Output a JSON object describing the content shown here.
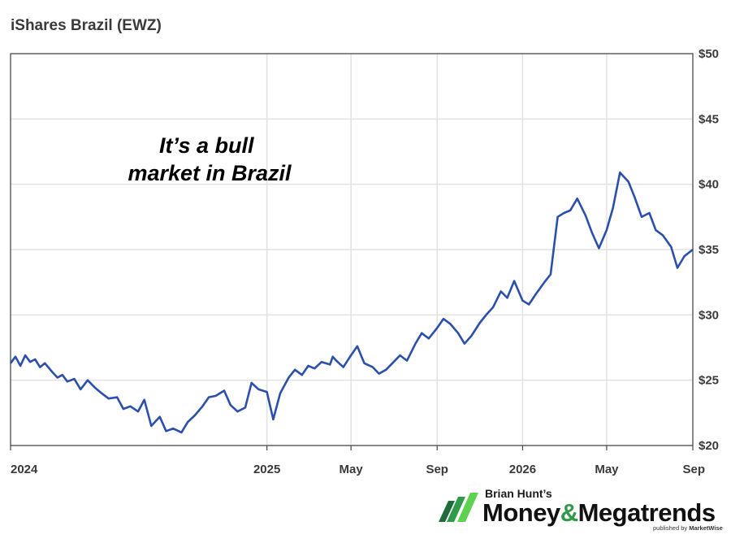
{
  "chart_data": {
    "type": "line",
    "title": "iShares Brazil (EWZ)",
    "x_tick_labels": [
      {
        "date": "2024-01-01",
        "label": "2024"
      },
      {
        "date": "2025-01-01",
        "label": "2025"
      },
      {
        "date": "2025-05-01",
        "label": "May"
      },
      {
        "date": "2025-09-01",
        "label": "Sep"
      },
      {
        "date": "2026-01-01",
        "label": "2026"
      },
      {
        "date": "2026-05-01",
        "label": "May"
      },
      {
        "date": "2026-09-01",
        "label": "Sep"
      }
    ],
    "y_ticks": [
      {
        "value": 20,
        "label": "$20"
      },
      {
        "value": 25,
        "label": "$25"
      },
      {
        "value": 30,
        "label": "$30"
      },
      {
        "value": 35,
        "label": "$35"
      },
      {
        "value": 40,
        "label": "$40"
      },
      {
        "value": 45,
        "label": "$45"
      },
      {
        "value": 50,
        "label": "$50"
      }
    ],
    "xlim": [
      "2024-01-01",
      "2026-09-01"
    ],
    "ylim": [
      20,
      50
    ],
    "y_axis_position": "right",
    "grid": true,
    "line_color": "#2b4faa",
    "annotation_lines": [
      "It’s a bull",
      "market in Brazil"
    ],
    "series": [
      {
        "x": [
          "2024-01-01",
          "2024-01-08",
          "2024-01-15",
          "2024-01-22",
          "2024-01-29",
          "2024-02-05",
          "2024-02-12",
          "2024-02-19",
          "2024-03-01",
          "2024-03-08",
          "2024-03-15",
          "2024-03-22",
          "2024-04-01",
          "2024-04-10",
          "2024-04-20",
          "2024-05-01",
          "2024-05-10",
          "2024-05-20",
          "2024-06-01",
          "2024-06-10",
          "2024-06-20",
          "2024-07-01",
          "2024-07-10",
          "2024-07-20",
          "2024-08-01",
          "2024-08-10",
          "2024-08-20",
          "2024-09-01",
          "2024-09-10",
          "2024-09-20",
          "2024-10-01",
          "2024-10-10",
          "2024-10-20",
          "2024-11-01",
          "2024-11-10",
          "2024-11-20",
          "2024-12-01",
          "2024-12-10",
          "2024-12-20",
          "2025-01-01",
          "2025-01-10",
          "2025-01-20",
          "2025-02-01",
          "2025-02-10",
          "2025-02-20",
          "2025-03-01",
          "2025-03-10",
          "2025-03-20",
          "2025-04-01",
          "2025-04-05",
          "2025-04-10",
          "2025-04-20",
          "2025-05-01",
          "2025-05-10",
          "2025-05-20",
          "2025-06-01",
          "2025-06-10",
          "2025-06-20",
          "2025-07-01",
          "2025-07-10",
          "2025-07-20",
          "2025-08-01",
          "2025-08-10",
          "2025-08-20",
          "2025-09-01",
          "2025-09-10",
          "2025-09-20",
          "2025-10-01",
          "2025-10-10",
          "2025-10-20",
          "2025-11-01",
          "2025-11-10",
          "2025-11-20",
          "2025-12-01",
          "2025-12-10",
          "2025-12-20",
          "2026-01-01",
          "2026-01-10",
          "2026-01-20",
          "2026-02-01",
          "2026-02-10",
          "2026-02-20",
          "2026-03-01",
          "2026-03-10",
          "2026-03-20",
          "2026-04-01",
          "2026-04-10",
          "2026-04-20",
          "2026-05-01",
          "2026-05-10",
          "2026-05-20",
          "2026-06-01",
          "2026-06-10",
          "2026-06-20",
          "2026-07-01",
          "2026-07-10",
          "2026-07-20",
          "2026-08-01",
          "2026-08-10",
          "2026-08-20",
          "2026-09-01"
        ],
        "y": [
          26.3,
          26.8,
          26.1,
          26.9,
          26.4,
          26.6,
          26.0,
          26.3,
          25.6,
          25.2,
          25.4,
          24.9,
          25.1,
          24.3,
          25.0,
          24.4,
          24.0,
          23.6,
          23.7,
          22.8,
          23.0,
          22.6,
          23.5,
          21.5,
          22.2,
          21.1,
          21.3,
          21.0,
          21.8,
          22.3,
          23.0,
          23.7,
          23.8,
          24.2,
          23.1,
          22.6,
          22.9,
          24.8,
          24.3,
          24.1,
          22.0,
          24.0,
          25.2,
          25.8,
          25.4,
          26.1,
          25.9,
          26.4,
          26.2,
          26.8,
          26.5,
          26.0,
          26.9,
          27.6,
          26.3,
          26.0,
          25.5,
          25.8,
          26.4,
          26.9,
          26.5,
          27.8,
          28.6,
          28.2,
          29.0,
          29.7,
          29.3,
          28.6,
          27.8,
          28.4,
          29.4,
          30.0,
          30.6,
          31.8,
          31.3,
          32.6,
          31.1,
          30.8,
          31.6,
          32.5,
          33.1,
          37.5,
          37.8,
          38.0,
          38.9,
          37.6,
          36.3,
          35.1,
          36.5,
          38.2,
          40.9,
          40.2,
          39.0,
          37.5,
          37.8,
          36.5,
          36.1,
          35.2,
          33.6,
          34.5,
          35.0
        ]
      }
    ]
  },
  "branding": {
    "author": "Brian Hunt’s",
    "brand_money": "Money",
    "brand_amp": "&",
    "brand_megatrends": "Megatrends",
    "published_by": "published by",
    "publisher": "MarketWise",
    "logo_colors": [
      "#1f6b3a",
      "#2f9a4a",
      "#5ed14e"
    ]
  }
}
